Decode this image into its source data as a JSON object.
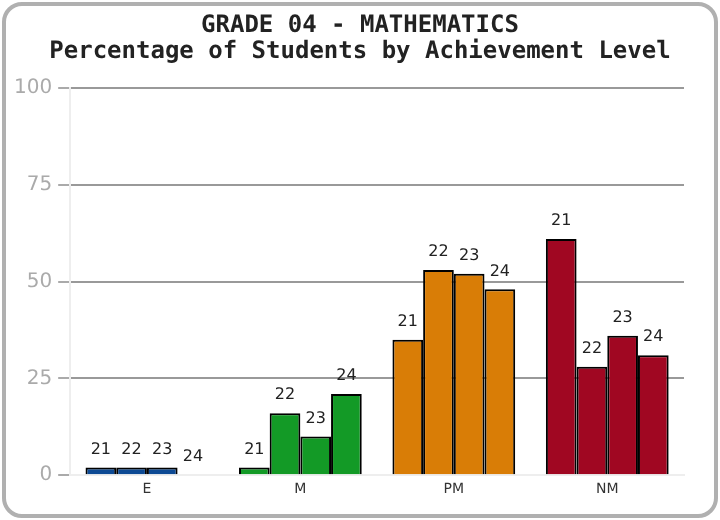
{
  "chart_data": {
    "type": "bar",
    "title": "GRADE 04 - MATHEMATICS",
    "subtitle": "Percentage of Students by Achievement Level",
    "categories": [
      "E",
      "M",
      "PM",
      "NM"
    ],
    "series": [
      {
        "name": "21",
        "colors": [
          "#0d4a94",
          "#139a26",
          "#d97d06",
          "#a00722"
        ],
        "values": [
          2,
          2,
          35,
          61
        ]
      },
      {
        "name": "22",
        "colors": [
          "#0d4a94",
          "#139a26",
          "#d97d06",
          "#a00722"
        ],
        "values": [
          2,
          16,
          53,
          28
        ]
      },
      {
        "name": "23",
        "colors": [
          "#0d4a94",
          "#139a26",
          "#d97d06",
          "#a00722"
        ],
        "values": [
          2,
          10,
          52,
          36
        ]
      },
      {
        "name": "24",
        "colors": [
          "#0d4a94",
          "#139a26",
          "#d97d06",
          "#a00722"
        ],
        "values": [
          0,
          21,
          48,
          31
        ]
      }
    ],
    "ylim": [
      0,
      100
    ],
    "yticks": [
      0,
      25,
      50,
      75,
      100
    ],
    "grid": "y",
    "legend": false
  }
}
